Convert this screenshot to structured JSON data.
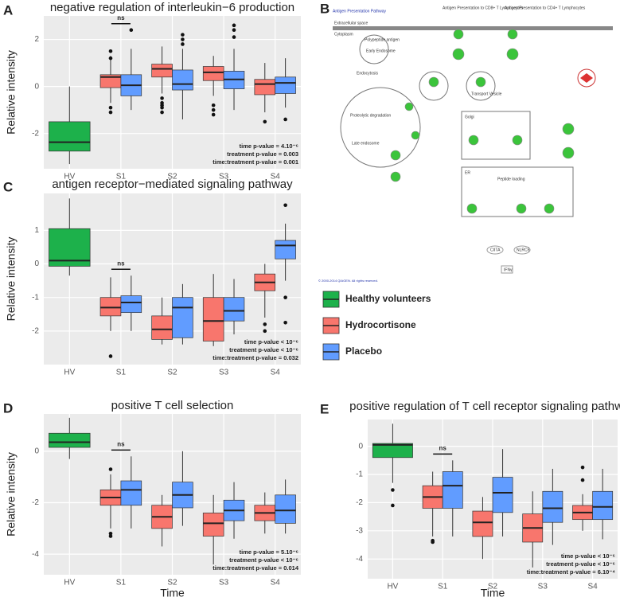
{
  "charts_common": {
    "categories": [
      "HV",
      "S1",
      "S2",
      "S3",
      "S4"
    ]
  },
  "legend": [
    {
      "name": "Healthy volunteers",
      "color": "#1db14b"
    },
    {
      "name": "Hydrocortisone",
      "color": "#f8766d"
    },
    {
      "name": "Placebo",
      "color": "#619cff"
    }
  ],
  "chart_data": [
    {
      "type": "box",
      "letter": "A",
      "title": "negative regulation of interleukin−6 production",
      "ylabel": "Relative intensity",
      "categories": [
        "HV",
        "S1",
        "S2",
        "S3",
        "S4"
      ],
      "ylim": [
        -3.5,
        3
      ],
      "yticks": [
        -2,
        0,
        2
      ],
      "grid": true,
      "ns": "ns",
      "annotations": [
        "time p-value = 4.10⁻⁶",
        "treatment p-value = 0.003",
        "time:treatment p-value = 0.001"
      ],
      "series": [
        {
          "values": [
            {
              "whislo": -3.3,
              "q1": -2.75,
              "med": -2.37,
              "q3": -1.5,
              "whishi": 0,
              "fliers": []
            },
            null,
            null,
            null,
            null
          ]
        },
        {
          "values": [
            null,
            {
              "whislo": -0.7,
              "q1": -0.05,
              "med": 0.4,
              "q3": 0.5,
              "whishi": 1.3,
              "fliers": [
                1.5,
                1.2,
                -0.9,
                -1.1
              ]
            },
            {
              "whislo": -0.3,
              "q1": 0.4,
              "med": 0.75,
              "q3": 0.95,
              "whishi": 1.7,
              "fliers": [
                -0.5,
                -0.7,
                -0.8,
                -0.9,
                -1.1
              ]
            },
            {
              "whislo": -0.4,
              "q1": 0.25,
              "med": 0.6,
              "q3": 0.85,
              "whishi": 1.3,
              "fliers": [
                -0.8,
                -1.0,
                -1.2
              ]
            },
            {
              "whislo": -1.1,
              "q1": -0.35,
              "med": 0.1,
              "q3": 0.3,
              "whishi": 1.0,
              "fliers": [
                -1.5
              ]
            }
          ]
        },
        {
          "values": [
            null,
            {
              "whislo": -1.0,
              "q1": -0.4,
              "med": 0.05,
              "q3": 0.5,
              "whishi": 1.6,
              "fliers": [
                2.4
              ]
            },
            {
              "whislo": -1.4,
              "q1": -0.15,
              "med": 0.1,
              "q3": 0.7,
              "whishi": 1.6,
              "fliers": [
                1.8,
                2.0,
                2.2
              ]
            },
            {
              "whislo": -1.0,
              "q1": -0.1,
              "med": 0.3,
              "q3": 0.65,
              "whishi": 1.6,
              "fliers": [
                2.1,
                2.4,
                2.6
              ]
            },
            {
              "whislo": -0.9,
              "q1": -0.3,
              "med": 0.15,
              "q3": 0.4,
              "whishi": 1.2,
              "fliers": [
                -1.4
              ]
            }
          ]
        }
      ]
    },
    {
      "type": "box",
      "letter": "C",
      "title": "antigen receptor−mediated signaling pathway",
      "ylabel": "Relative intensity",
      "categories": [
        "HV",
        "S1",
        "S2",
        "S3",
        "S4"
      ],
      "ylim": [
        -3.0,
        2.1
      ],
      "yticks": [
        -2,
        -1,
        0,
        1
      ],
      "grid": true,
      "ns": "ns",
      "annotations": [
        "time p-value < 10⁻⁶",
        "treatment p-value < 10⁻⁶",
        "time:treatment p-value = 0.032"
      ],
      "series": [
        {
          "values": [
            {
              "whislo": -0.35,
              "q1": -0.07,
              "med": 0.1,
              "q3": 1.05,
              "whishi": 1.95,
              "fliers": []
            },
            null,
            null,
            null,
            null
          ]
        },
        {
          "values": [
            null,
            {
              "whislo": -2.0,
              "q1": -1.55,
              "med": -1.3,
              "q3": -1.0,
              "whishi": -0.4,
              "fliers": [
                -2.75
              ]
            },
            {
              "whislo": -2.4,
              "q1": -2.25,
              "med": -1.95,
              "q3": -1.55,
              "whishi": -1.0,
              "fliers": []
            },
            {
              "whislo": -2.45,
              "q1": -2.3,
              "med": -1.7,
              "q3": -1.0,
              "whishi": -0.3,
              "fliers": []
            },
            {
              "whislo": -1.6,
              "q1": -0.8,
              "med": -0.55,
              "q3": -0.3,
              "whishi": 0.0,
              "fliers": [
                -1.8,
                -2.0
              ]
            }
          ]
        },
        {
          "values": [
            null,
            {
              "whislo": -2.0,
              "q1": -1.45,
              "med": -1.15,
              "q3": -0.95,
              "whishi": -0.35,
              "fliers": []
            },
            {
              "whislo": -2.4,
              "q1": -2.2,
              "med": -1.3,
              "q3": -1.0,
              "whishi": -0.6,
              "fliers": []
            },
            {
              "whislo": -2.1,
              "q1": -1.7,
              "med": -1.4,
              "q3": -1.0,
              "whishi": -0.45,
              "fliers": []
            },
            {
              "whislo": -0.5,
              "q1": 0.15,
              "med": 0.55,
              "q3": 0.7,
              "whishi": 1.2,
              "fliers": [
                1.75,
                -1.0,
                -1.75
              ]
            }
          ]
        }
      ]
    },
    {
      "type": "box",
      "letter": "D",
      "title": "positive T cell selection",
      "ylabel": "Relative intensity",
      "xlabel": "Time",
      "categories": [
        "HV",
        "S1",
        "S2",
        "S3",
        "S4"
      ],
      "ylim": [
        -4.8,
        1.45
      ],
      "yticks": [
        -4,
        -2,
        0
      ],
      "grid": true,
      "ns": "ns",
      "annotations": [
        "time p-value = 5.10⁻⁶",
        "treatment p-value < 10⁻⁶",
        "time:treatment p-value = 0.014"
      ],
      "series": [
        {
          "values": [
            {
              "whislo": -0.3,
              "q1": 0.15,
              "med": 0.35,
              "q3": 0.7,
              "whishi": 1.3,
              "fliers": []
            },
            null,
            null,
            null,
            null
          ]
        },
        {
          "values": [
            null,
            {
              "whislo": -3.0,
              "q1": -2.1,
              "med": -1.8,
              "q3": -1.5,
              "whishi": -0.9,
              "fliers": [
                -0.7,
                -3.2,
                -3.3
              ]
            },
            {
              "whislo": -3.7,
              "q1": -3.0,
              "med": -2.55,
              "q3": -2.1,
              "whishi": -1.7,
              "fliers": []
            },
            {
              "whislo": -4.4,
              "q1": -3.3,
              "med": -2.8,
              "q3": -2.4,
              "whishi": -1.7,
              "fliers": []
            },
            {
              "whislo": -3.2,
              "q1": -2.7,
              "med": -2.4,
              "q3": -2.1,
              "whishi": -1.6,
              "fliers": []
            }
          ]
        },
        {
          "values": [
            null,
            {
              "whislo": -3.0,
              "q1": -2.1,
              "med": -1.5,
              "q3": -1.15,
              "whishi": -0.2,
              "fliers": []
            },
            {
              "whislo": -2.9,
              "q1": -2.2,
              "med": -1.7,
              "q3": -1.2,
              "whishi": 0.0,
              "fliers": []
            },
            {
              "whislo": -3.4,
              "q1": -2.7,
              "med": -2.3,
              "q3": -1.9,
              "whishi": -1.2,
              "fliers": []
            },
            {
              "whislo": -3.2,
              "q1": -2.8,
              "med": -2.3,
              "q3": -1.7,
              "whishi": -1.1,
              "fliers": []
            }
          ]
        }
      ]
    },
    {
      "type": "box",
      "letter": "E",
      "title": "positive regulation of T cell receptor signaling pathway",
      "xlabel": "Time",
      "categories": [
        "HV",
        "S1",
        "S2",
        "S3",
        "S4"
      ],
      "ylim": [
        -4.7,
        0.95
      ],
      "yticks": [
        -4,
        -3,
        -2,
        -1,
        0
      ],
      "grid": true,
      "ns": "ns",
      "annotations": [
        "time p-value < 10⁻⁶",
        "treatment p-value < 10⁻⁶",
        "time:treatment p-value = 6.10⁻⁴"
      ],
      "series": [
        {
          "values": [
            {
              "whislo": -1.3,
              "q1": -0.4,
              "med": 0.05,
              "q3": 0.1,
              "whishi": 0.8,
              "fliers": [
                -1.55,
                -2.1
              ]
            },
            null,
            null,
            null,
            null
          ]
        },
        {
          "values": [
            null,
            {
              "whislo": -3.2,
              "q1": -2.2,
              "med": -1.8,
              "q3": -1.4,
              "whishi": -0.9,
              "fliers": [
                -3.35,
                -3.4
              ]
            },
            {
              "whislo": -4.0,
              "q1": -3.2,
              "med": -2.7,
              "q3": -2.3,
              "whishi": -1.8,
              "fliers": []
            },
            {
              "whislo": -4.3,
              "q1": -3.4,
              "med": -2.9,
              "q3": -2.4,
              "whishi": -1.6,
              "fliers": []
            },
            {
              "whislo": -3.0,
              "q1": -2.6,
              "med": -2.35,
              "q3": -2.1,
              "whishi": -1.7,
              "fliers": [
                -0.75,
                -1.2
              ]
            }
          ]
        },
        {
          "values": [
            null,
            {
              "whislo": -3.2,
              "q1": -2.2,
              "med": -1.4,
              "q3": -0.9,
              "whishi": -0.5,
              "fliers": []
            },
            {
              "whislo": -3.2,
              "q1": -2.35,
              "med": -1.65,
              "q3": -1.1,
              "whishi": -0.1,
              "fliers": []
            },
            {
              "whislo": -3.5,
              "q1": -2.7,
              "med": -2.2,
              "q3": -1.6,
              "whishi": -0.8,
              "fliers": []
            },
            {
              "whislo": -3.3,
              "q1": -2.6,
              "med": -2.15,
              "q3": -1.6,
              "whishi": -0.8,
              "fliers": []
            }
          ]
        }
      ]
    }
  ],
  "panel_b": {
    "letter": "B",
    "title": "Antigen Presentation Pathway",
    "labels": [
      "Extracellular space",
      "Cytoplasm",
      "Antigen Presentation to CD8+ T Lymphocytes",
      "Antigen Presentation to CD4+ T Lymphocytes",
      "Polypeptide antigen",
      "Early Endosome",
      "Endocytosis",
      "Proteolytic degradation",
      "Late endosome",
      "Transport Vesicle",
      "Golgi",
      "ER",
      "Peptide loading",
      "CIITA",
      "NLRC5",
      "IFNγ",
      "© 2000-2014 QIAGEN. All rights reserved."
    ]
  }
}
